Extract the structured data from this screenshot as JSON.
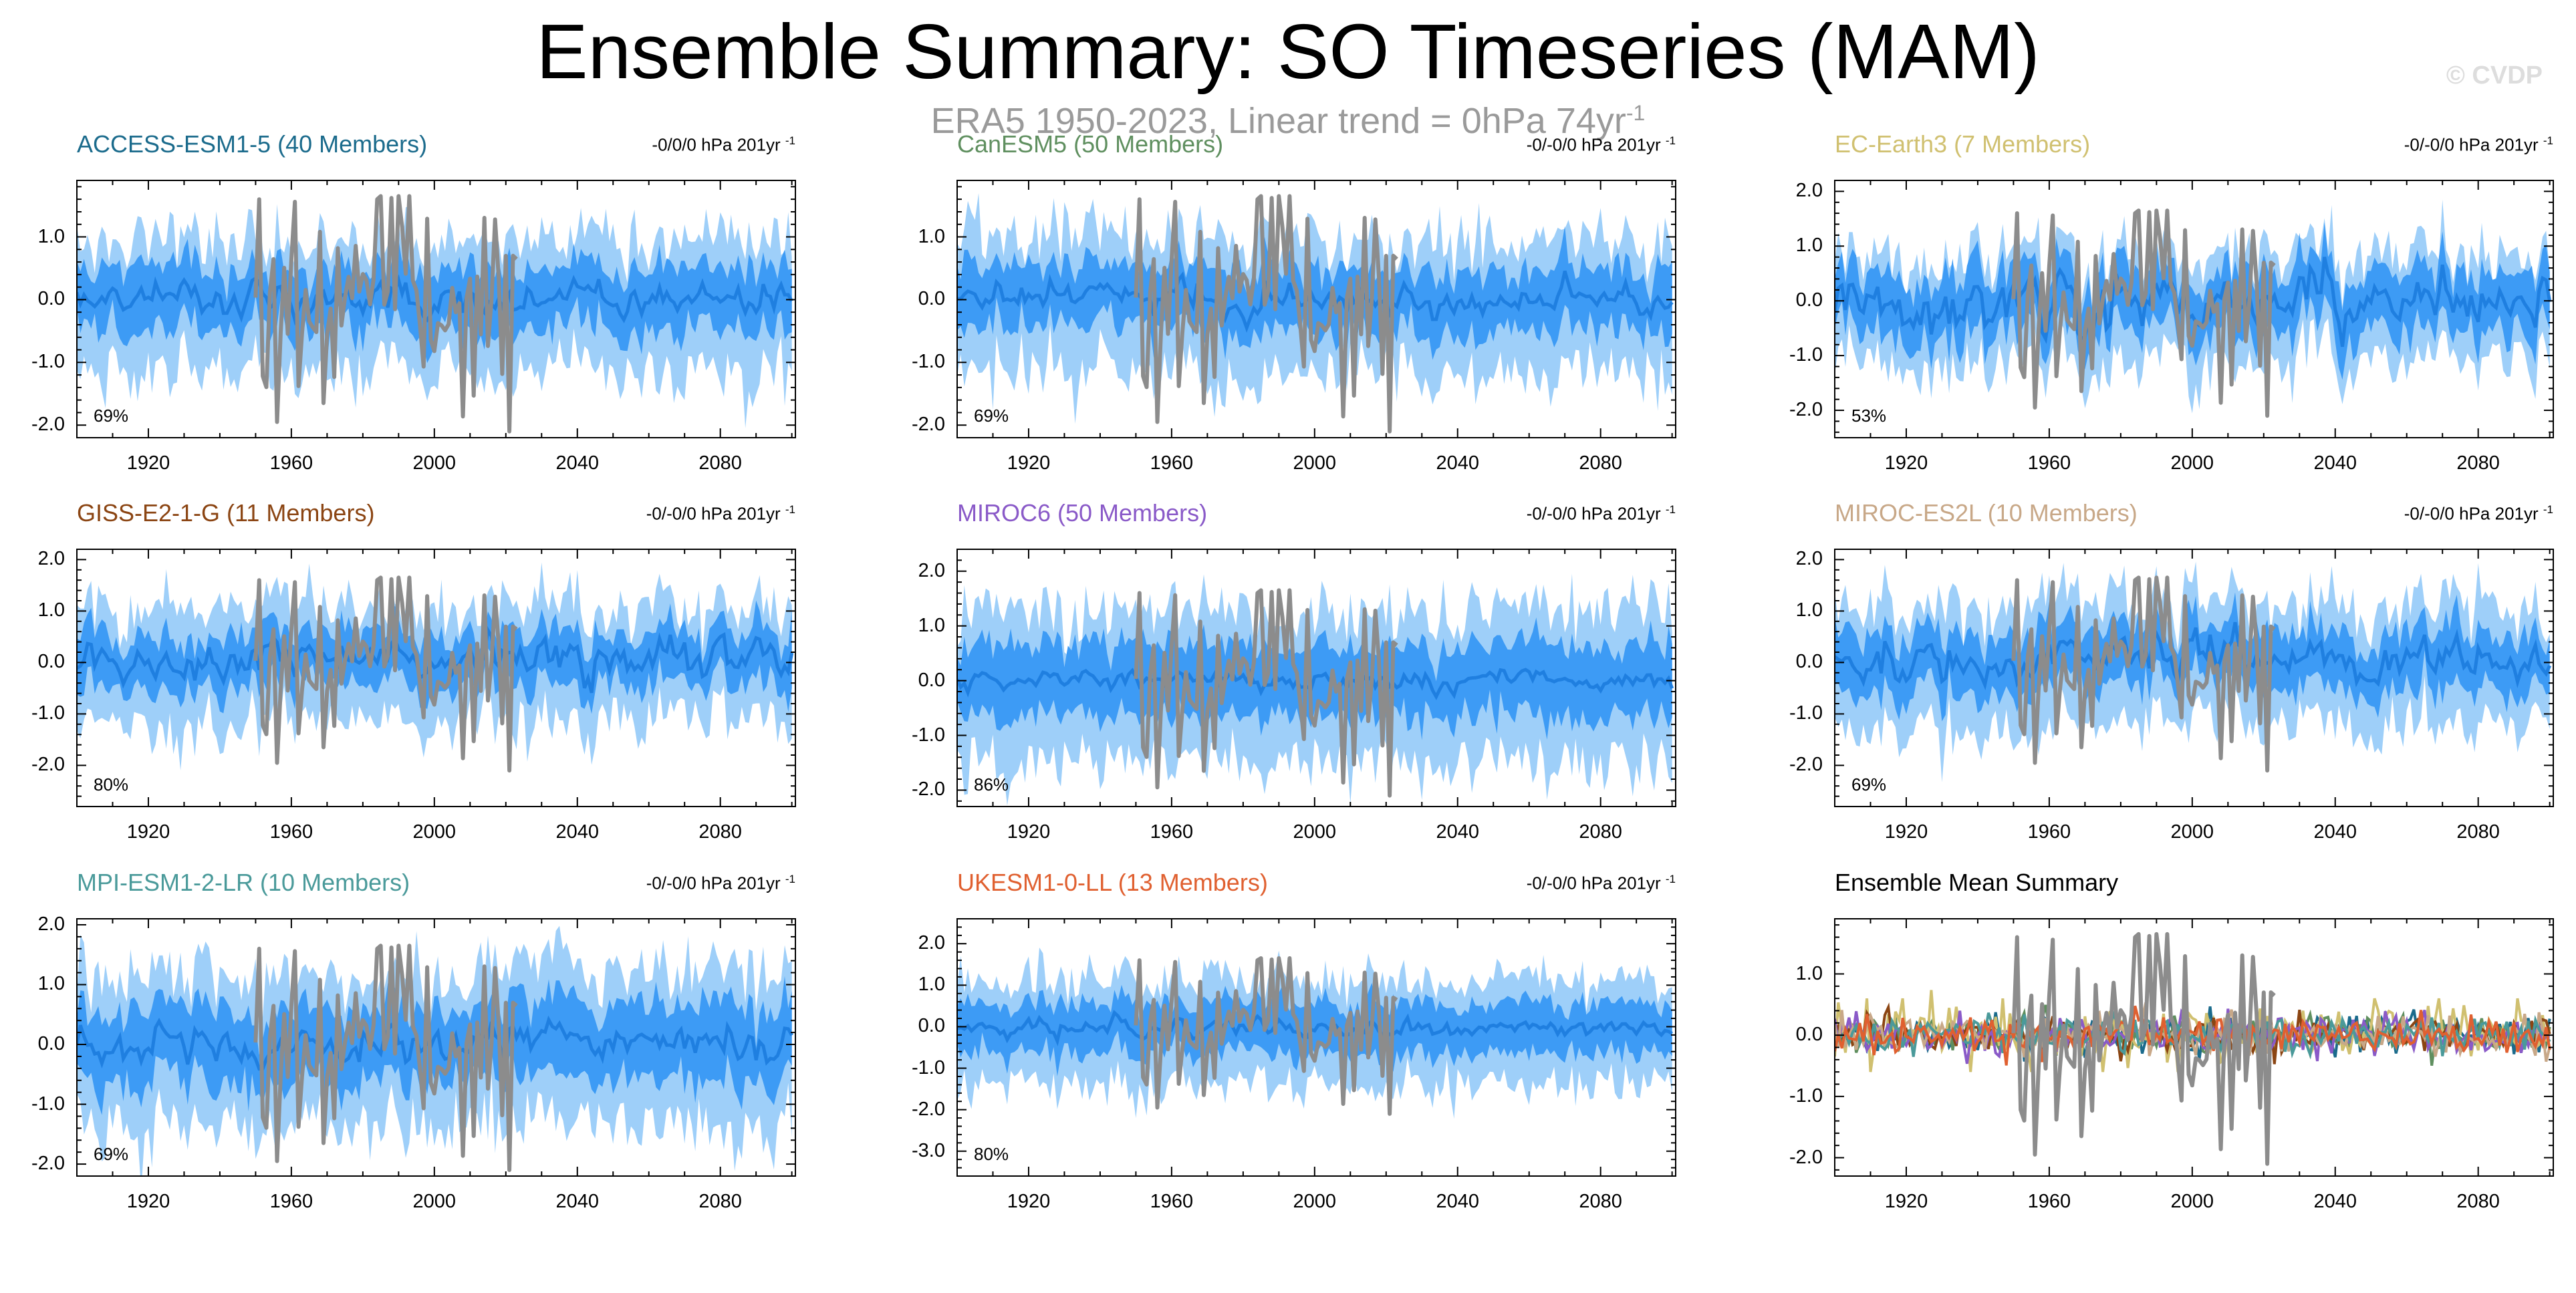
{
  "title": "Ensemble Summary: SO Timeseries (MAM)",
  "subtitle": {
    "text": "ERA5 1950-2023, Linear trend = 0hPa 74yr",
    "superscript": "-1"
  },
  "watermark": "© CVDP",
  "colors": {
    "outer_band": "#9ecff9",
    "inner_band": "#3d9bf5",
    "ensemble_mean_line": "#1f7fe0",
    "observations": "#8c8c8c"
  },
  "chart_data": [
    {
      "type": "area",
      "title": "ACCESS-ESM1-5 (40 Members)",
      "title_color": "#1b6b8c",
      "trend_label": "-0/0/0 hPa 201yr",
      "trend_superscript": "-1",
      "percent_label": "69%",
      "yticks": [
        1.0,
        0.0,
        -1.0,
        -2.0
      ],
      "ytick_labels": [
        "1.0",
        "0.0",
        "-1.0",
        "-2.0"
      ],
      "ylim": [
        -2.2,
        1.9
      ],
      "xticks": [
        1920,
        1960,
        2000,
        2040,
        2080
      ],
      "xlim": [
        1900,
        2101
      ],
      "series_summary": {
        "outer_spread": 0.95,
        "inner_spread": 0.48,
        "mean_amplitude": 0.12
      },
      "observations": {
        "name": "ERA5",
        "x_range": [
          1950,
          2023
        ]
      }
    },
    {
      "type": "area",
      "title": "CanESM5 (50 Members)",
      "title_color": "#5f8f5f",
      "trend_label": "-0/-0/0 hPa 201yr",
      "trend_superscript": "-1",
      "percent_label": "69%",
      "yticks": [
        1.0,
        0.0,
        -1.0,
        -2.0
      ],
      "ytick_labels": [
        "1.0",
        "0.0",
        "-1.0",
        "-2.0"
      ],
      "ylim": [
        -2.2,
        1.9
      ],
      "xticks": [
        1920,
        1960,
        2000,
        2040,
        2080
      ],
      "xlim": [
        1900,
        2101
      ],
      "series_summary": {
        "outer_spread": 0.95,
        "inner_spread": 0.48,
        "mean_amplitude": 0.1
      },
      "observations": {
        "name": "ERA5",
        "x_range": [
          1950,
          2023
        ]
      }
    },
    {
      "type": "area",
      "title": "EC-Earth3 (7 Members)",
      "title_color": "#d0c070",
      "trend_label": "-0/-0/0 hPa 201yr",
      "trend_superscript": "-1",
      "percent_label": "53%",
      "yticks": [
        2.0,
        1.0,
        0.0,
        -1.0,
        -2.0
      ],
      "ytick_labels": [
        "2.0",
        "1.0",
        "0.0",
        "-1.0",
        "-2.0"
      ],
      "ylim": [
        -2.5,
        2.2
      ],
      "xticks": [
        1920,
        1960,
        2000,
        2040,
        2080
      ],
      "xlim": [
        1900,
        2101
      ],
      "series_summary": {
        "outer_spread": 0.9,
        "inner_spread": 0.55,
        "mean_amplitude": 0.25
      },
      "observations": {
        "name": "ERA5",
        "x_range": [
          1950,
          2023
        ]
      }
    },
    {
      "type": "area",
      "title": "GISS-E2-1-G (11 Members)",
      "title_color": "#8b4513",
      "trend_label": "-0/-0/0 hPa 201yr",
      "trend_superscript": "-1",
      "percent_label": "80%",
      "yticks": [
        2.0,
        1.0,
        0.0,
        -1.0,
        -2.0
      ],
      "ytick_labels": [
        "2.0",
        "1.0",
        "0.0",
        "-1.0",
        "-2.0"
      ],
      "ylim": [
        -2.8,
        2.2
      ],
      "xticks": [
        1920,
        1960,
        2000,
        2040,
        2080
      ],
      "xlim": [
        1900,
        2101
      ],
      "series_summary": {
        "outer_spread": 1.0,
        "inner_spread": 0.5,
        "mean_amplitude": 0.2
      },
      "observations": {
        "name": "ERA5",
        "x_range": [
          1950,
          2023
        ]
      }
    },
    {
      "type": "area",
      "title": "MIROC6 (50 Members)",
      "title_color": "#8a5ac8",
      "trend_label": "-0/-0/0 hPa 201yr",
      "trend_superscript": "-1",
      "percent_label": "86%",
      "yticks": [
        2.0,
        1.0,
        0.0,
        -1.0,
        -2.0
      ],
      "ytick_labels": [
        "2.0",
        "1.0",
        "0.0",
        "-1.0",
        "-2.0"
      ],
      "ylim": [
        -2.3,
        2.4
      ],
      "xticks": [
        1920,
        1960,
        2000,
        2040,
        2080
      ],
      "xlim": [
        1900,
        2101
      ],
      "series_summary": {
        "outer_spread": 1.3,
        "inner_spread": 0.65,
        "mean_amplitude": 0.08
      },
      "observations": {
        "name": "ERA5",
        "x_range": [
          1950,
          2023
        ]
      }
    },
    {
      "type": "area",
      "title": "MIROC-ES2L (10 Members)",
      "title_color": "#c8a888",
      "trend_label": "-0/-0/0 hPa 201yr",
      "trend_superscript": "-1",
      "percent_label": "69%",
      "yticks": [
        2.0,
        1.0,
        0.0,
        -1.0,
        -2.0
      ],
      "ytick_labels": [
        "2.0",
        "1.0",
        "0.0",
        "-1.0",
        "-2.0"
      ],
      "ylim": [
        -2.8,
        2.2
      ],
      "xticks": [
        1920,
        1960,
        2000,
        2040,
        2080
      ],
      "xlim": [
        1900,
        2101
      ],
      "series_summary": {
        "outer_spread": 1.05,
        "inner_spread": 0.55,
        "mean_amplitude": 0.18
      },
      "observations": {
        "name": "ERA5",
        "x_range": [
          1950,
          2023
        ]
      }
    },
    {
      "type": "area",
      "title": "MPI-ESM1-2-LR (10 Members)",
      "title_color": "#4a9a9a",
      "trend_label": "-0/-0/0 hPa 201yr",
      "trend_superscript": "-1",
      "percent_label": "69%",
      "yticks": [
        2.0,
        1.0,
        0.0,
        -1.0,
        -2.0
      ],
      "ytick_labels": [
        "2.0",
        "1.0",
        "0.0",
        "-1.0",
        "-2.0"
      ],
      "ylim": [
        -2.2,
        2.1
      ],
      "xticks": [
        1920,
        1960,
        2000,
        2040,
        2080
      ],
      "xlim": [
        1900,
        2101
      ],
      "series_summary": {
        "outer_spread": 1.15,
        "inner_spread": 0.6,
        "mean_amplitude": 0.15
      },
      "observations": {
        "name": "ERA5",
        "x_range": [
          1950,
          2023
        ]
      }
    },
    {
      "type": "area",
      "title": "UKESM1-0-LL (13 Members)",
      "title_color": "#e06030",
      "trend_label": "-0/-0/0 hPa 201yr",
      "trend_superscript": "-1",
      "percent_label": "80%",
      "yticks": [
        2.0,
        1.0,
        0.0,
        -1.0,
        -2.0,
        -3.0
      ],
      "ytick_labels": [
        "2.0",
        "1.0",
        "0.0",
        "-1.0",
        "-2.0",
        "-3.0"
      ],
      "ylim": [
        -3.6,
        2.6
      ],
      "xticks": [
        1920,
        1960,
        2000,
        2040,
        2080
      ],
      "xlim": [
        1900,
        2101
      ],
      "series_summary": {
        "outer_spread": 1.15,
        "inner_spread": 0.6,
        "mean_amplitude": 0.1
      },
      "observations": {
        "name": "ERA5",
        "x_range": [
          1950,
          2023
        ]
      }
    },
    {
      "type": "line",
      "title": "Ensemble Mean Summary",
      "title_color": "#000000",
      "yticks": [
        1.0,
        0.0,
        -1.0,
        -2.0
      ],
      "ytick_labels": [
        "1.0",
        "0.0",
        "-1.0",
        "-2.0"
      ],
      "ylim": [
        -2.3,
        1.9
      ],
      "xticks": [
        1920,
        1960,
        2000,
        2040,
        2080
      ],
      "xlim": [
        1900,
        2101
      ],
      "model_colors": [
        "#1b6b8c",
        "#5f8f5f",
        "#d0c070",
        "#8b4513",
        "#8a5ac8",
        "#c8a888",
        "#4a9a9a",
        "#e06030"
      ],
      "observations": {
        "name": "ERA5",
        "x_range": [
          1950,
          2023
        ]
      }
    }
  ]
}
